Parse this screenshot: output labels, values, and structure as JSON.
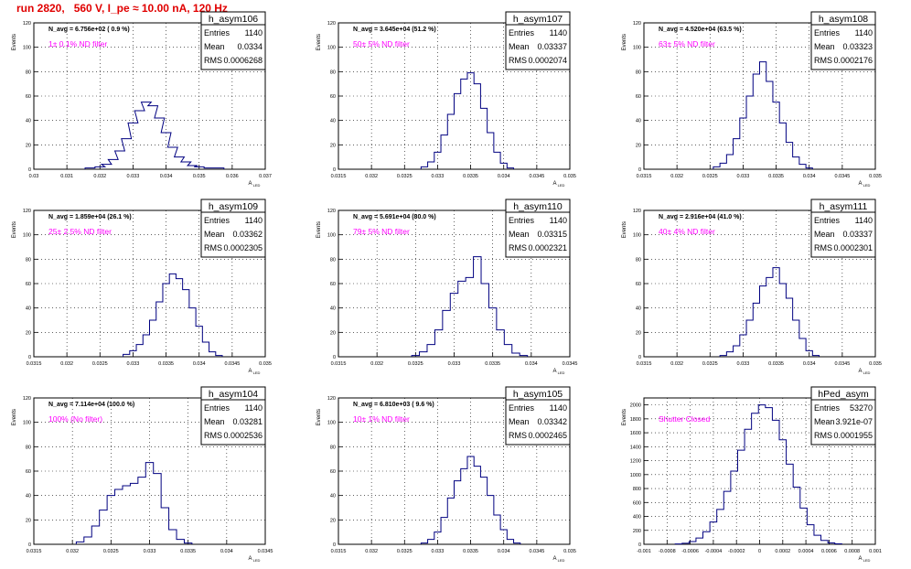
{
  "title": "run 2820,   560 V, I_pe ≈ 10.00 nA, 120 Hz",
  "colors": {
    "hist": "#000080",
    "annotation": "#ff00ff",
    "title": "#e00000",
    "grid": "#000000"
  },
  "chart_data": [
    {
      "type": "histogram",
      "name": "h_asym106",
      "ylabel": "Events",
      "xlabel": "A_LED",
      "stats": {
        "entries": "1140",
        "mean": "0.0334",
        "rms": "0.0006268"
      },
      "stats_labels": [
        "Entries",
        "Mean",
        "RMS"
      ],
      "navg": "N_avg = 6.756e+02 ( 0.9 %)",
      "annotation": "1± 0.1% ND filter",
      "xlim": [
        0.03,
        0.037
      ],
      "ylim": [
        0,
        120
      ],
      "xticks": [
        "0.03",
        "0.031",
        "0.032",
        "0.033",
        "0.034",
        "0.035",
        "0.036",
        "0.037"
      ],
      "yticks": [
        "0",
        "20",
        "40",
        "60",
        "80",
        "100",
        "120"
      ],
      "x": [
        0.0317,
        0.032,
        0.0322,
        0.0324,
        0.0326,
        0.0328,
        0.033,
        0.0332,
        0.0334,
        0.0336,
        0.0338,
        0.034,
        0.0342,
        0.0344,
        0.0346,
        0.0348,
        0.035,
        0.0353,
        0.0356
      ],
      "counts": [
        1,
        2,
        4,
        8,
        15,
        25,
        38,
        48,
        55,
        52,
        42,
        30,
        18,
        10,
        6,
        3,
        2,
        1,
        1
      ]
    },
    {
      "type": "histogram",
      "name": "h_asym107",
      "ylabel": "Events",
      "xlabel": "A_LED",
      "stats": {
        "entries": "1140",
        "mean": "0.03337",
        "rms": "0.0002074"
      },
      "stats_labels": [
        "Entries",
        "Mean",
        "RMS"
      ],
      "navg": "N_avg = 3.645e+04 (51.2 %)",
      "annotation": "50± 5% ND filter",
      "xlim": [
        0.0315,
        0.035
      ],
      "ylim": [
        0,
        120
      ],
      "xticks": [
        "0.0315",
        "0.032",
        "0.0325",
        "0.033",
        "0.0335",
        "0.034",
        "0.0345",
        "0.035"
      ],
      "yticks": [
        "0",
        "20",
        "40",
        "60",
        "80",
        "100",
        "120"
      ],
      "x": [
        0.0328,
        0.0329,
        0.033,
        0.0331,
        0.0332,
        0.0333,
        0.0334,
        0.0335,
        0.0336,
        0.0337,
        0.0338,
        0.0339,
        0.034,
        0.0341
      ],
      "counts": [
        2,
        6,
        14,
        28,
        45,
        62,
        74,
        79,
        70,
        50,
        30,
        14,
        5,
        1
      ]
    },
    {
      "type": "histogram",
      "name": "h_asym108",
      "ylabel": "Events",
      "xlabel": "A_LED",
      "stats": {
        "entries": "1140",
        "mean": "0.03323",
        "rms": "0.0002176"
      },
      "stats_labels": [
        "Entries",
        "Mean",
        "RMS"
      ],
      "navg": "N_avg = 4.520e+04 (63.5 %)",
      "annotation": "63± 5% ND filter",
      "xlim": [
        0.0315,
        0.035
      ],
      "ylim": [
        0,
        120
      ],
      "xticks": [
        "0.0315",
        "0.032",
        "0.0325",
        "0.033",
        "0.0335",
        "0.034",
        "0.0345",
        "0.035"
      ],
      "yticks": [
        "0",
        "20",
        "40",
        "60",
        "80",
        "100",
        "120"
      ],
      "x": [
        0.0326,
        0.0327,
        0.0328,
        0.0329,
        0.033,
        0.0331,
        0.0332,
        0.0333,
        0.0334,
        0.0335,
        0.0336,
        0.0337,
        0.0338,
        0.0339,
        0.034
      ],
      "counts": [
        2,
        5,
        12,
        25,
        42,
        60,
        78,
        88,
        72,
        55,
        38,
        22,
        10,
        4,
        1
      ]
    },
    {
      "type": "histogram",
      "name": "h_asym109",
      "ylabel": "Events",
      "xlabel": "A_LED",
      "stats": {
        "entries": "1140",
        "mean": "0.03362",
        "rms": "0.0002305"
      },
      "stats_labels": [
        "Entries",
        "Mean",
        "RMS"
      ],
      "navg": "N_avg = 1.859e+04 (26.1 %)",
      "annotation": "25± 2.5% ND filter",
      "xlim": [
        0.0315,
        0.035
      ],
      "ylim": [
        0,
        120
      ],
      "xticks": [
        "0.0315",
        "0.032",
        "0.0325",
        "0.033",
        "0.0335",
        "0.034",
        "0.0345",
        "0.035"
      ],
      "yticks": [
        "0",
        "20",
        "40",
        "60",
        "80",
        "100",
        "120"
      ],
      "x": [
        0.0329,
        0.033,
        0.0331,
        0.0332,
        0.0333,
        0.0334,
        0.0335,
        0.0336,
        0.0337,
        0.0338,
        0.0339,
        0.034,
        0.0341,
        0.0342,
        0.0343
      ],
      "counts": [
        2,
        5,
        10,
        18,
        30,
        45,
        60,
        68,
        64,
        55,
        40,
        25,
        12,
        4,
        1
      ]
    },
    {
      "type": "histogram",
      "name": "h_asym110",
      "ylabel": "Events",
      "xlabel": "A_LED",
      "stats": {
        "entries": "1140",
        "mean": "0.03315",
        "rms": "0.0002321"
      },
      "stats_labels": [
        "Entries",
        "Mean",
        "RMS"
      ],
      "navg": "N_avg = 5.691e+04 (80.0 %)",
      "annotation": "79± 5% ND filter",
      "xlim": [
        0.0315,
        0.0345
      ],
      "ylim": [
        0,
        120
      ],
      "xticks": [
        "0.0315",
        "0.032",
        "0.0325",
        "0.033",
        "0.0335",
        "0.034",
        "0.0345"
      ],
      "yticks": [
        "0",
        "20",
        "40",
        "60",
        "80",
        "100",
        "120"
      ],
      "x": [
        0.0325,
        0.0326,
        0.0327,
        0.0328,
        0.0329,
        0.033,
        0.0331,
        0.0332,
        0.0333,
        0.0334,
        0.0335,
        0.0336,
        0.0337,
        0.0338,
        0.0339
      ],
      "counts": [
        1,
        4,
        10,
        22,
        38,
        52,
        62,
        65,
        82,
        60,
        40,
        22,
        10,
        3,
        1
      ]
    },
    {
      "type": "histogram",
      "name": "h_asym111",
      "ylabel": "Events",
      "xlabel": "A_LED",
      "stats": {
        "entries": "1140",
        "mean": "0.03337",
        "rms": "0.0002301"
      },
      "stats_labels": [
        "Entries",
        "Mean",
        "RMS"
      ],
      "navg": "N_avg = 2.916e+04 (41.0 %)",
      "annotation": "40± 4% ND filter",
      "xlim": [
        0.0315,
        0.035
      ],
      "ylim": [
        0,
        120
      ],
      "xticks": [
        "0.0315",
        "0.032",
        "0.0325",
        "0.033",
        "0.0335",
        "0.034",
        "0.0345",
        "0.035"
      ],
      "yticks": [
        "0",
        "20",
        "40",
        "60",
        "80",
        "100",
        "120"
      ],
      "x": [
        0.0327,
        0.0328,
        0.0329,
        0.033,
        0.0331,
        0.0332,
        0.0333,
        0.0334,
        0.0335,
        0.0336,
        0.0337,
        0.0338,
        0.0339,
        0.034,
        0.0341
      ],
      "counts": [
        1,
        4,
        9,
        18,
        30,
        44,
        58,
        65,
        73,
        60,
        48,
        30,
        15,
        5,
        1
      ]
    },
    {
      "type": "histogram",
      "name": "h_asym104",
      "ylabel": "Events",
      "xlabel": "A_LED",
      "stats": {
        "entries": "1140",
        "mean": "0.03281",
        "rms": "0.0002536"
      },
      "stats_labels": [
        "Entries",
        "Mean",
        "RMS"
      ],
      "navg": "N_avg = 7.114e+04 (100.0 %)",
      "annotation": "100% (No filter)",
      "xlim": [
        0.0315,
        0.0345
      ],
      "ylim": [
        0,
        120
      ],
      "xticks": [
        "0.0315",
        "0.032",
        "0.0325",
        "0.033",
        "0.0335",
        "0.034",
        "0.0345"
      ],
      "yticks": [
        "0",
        "20",
        "40",
        "60",
        "80",
        "100",
        "120"
      ],
      "x": [
        0.0321,
        0.0322,
        0.0323,
        0.0324,
        0.0325,
        0.0326,
        0.0327,
        0.0328,
        0.0329,
        0.033,
        0.0331,
        0.0332,
        0.0333,
        0.0334,
        0.0335
      ],
      "counts": [
        2,
        6,
        15,
        28,
        40,
        45,
        48,
        50,
        55,
        67,
        58,
        30,
        12,
        4,
        1
      ]
    },
    {
      "type": "histogram",
      "name": "h_asym105",
      "ylabel": "Events",
      "xlabel": "A_LED",
      "stats": {
        "entries": "1140",
        "mean": "0.03342",
        "rms": "0.0002465"
      },
      "stats_labels": [
        "Entries",
        "Mean",
        "RMS"
      ],
      "navg": "N_avg = 6.810e+03 ( 9.6 %)",
      "annotation": "10± 1% ND filter",
      "xlim": [
        0.0315,
        0.035
      ],
      "ylim": [
        0,
        120
      ],
      "xticks": [
        "0.0315",
        "0.032",
        "0.0325",
        "0.033",
        "0.0335",
        "0.034",
        "0.0345",
        "0.035"
      ],
      "yticks": [
        "0",
        "20",
        "40",
        "60",
        "80",
        "100",
        "120"
      ],
      "x": [
        0.0328,
        0.0329,
        0.033,
        0.0331,
        0.0332,
        0.0333,
        0.0334,
        0.0335,
        0.0336,
        0.0337,
        0.0338,
        0.0339,
        0.034,
        0.0341,
        0.0342
      ],
      "counts": [
        1,
        4,
        10,
        22,
        38,
        52,
        62,
        72,
        64,
        55,
        40,
        24,
        12,
        4,
        1
      ]
    },
    {
      "type": "histogram",
      "name": "hPed_asym",
      "ylabel": "Events",
      "xlabel": "A_LED",
      "stats": {
        "entries": "53270",
        "mean": "3.921e-07",
        "rms": "0.0001955"
      },
      "stats_labels": [
        "Entries",
        "Mean",
        "RMS"
      ],
      "navg": "",
      "annotation": "Shutter Closed",
      "xlim": [
        -0.001,
        0.001
      ],
      "ylim": [
        0,
        2100
      ],
      "xticks": [
        "-0.001",
        "-0.0008",
        "-0.0006",
        "-0.0004",
        "-0.0002",
        "0",
        "0.0002",
        "0.0004",
        "0.0006",
        "0.0008",
        "0.001"
      ],
      "yticks": [
        "0",
        "200",
        "400",
        "600",
        "800",
        "1000",
        "1200",
        "1400",
        "1600",
        "1800",
        "2000"
      ],
      "x": [
        -0.0007,
        -0.00064,
        -0.00058,
        -0.00052,
        -0.00046,
        -0.0004,
        -0.00034,
        -0.00028,
        -0.00022,
        -0.00016,
        -0.0001,
        -4e-05,
        2e-05,
        8e-05,
        0.00014,
        0.0002,
        0.00026,
        0.00032,
        0.00038,
        0.00044,
        0.0005,
        0.00056,
        0.00062,
        0.00068
      ],
      "counts": [
        5,
        15,
        40,
        90,
        180,
        320,
        500,
        760,
        1050,
        1350,
        1650,
        1880,
        2000,
        1960,
        1780,
        1500,
        1150,
        820,
        520,
        280,
        130,
        55,
        20,
        6
      ]
    }
  ]
}
